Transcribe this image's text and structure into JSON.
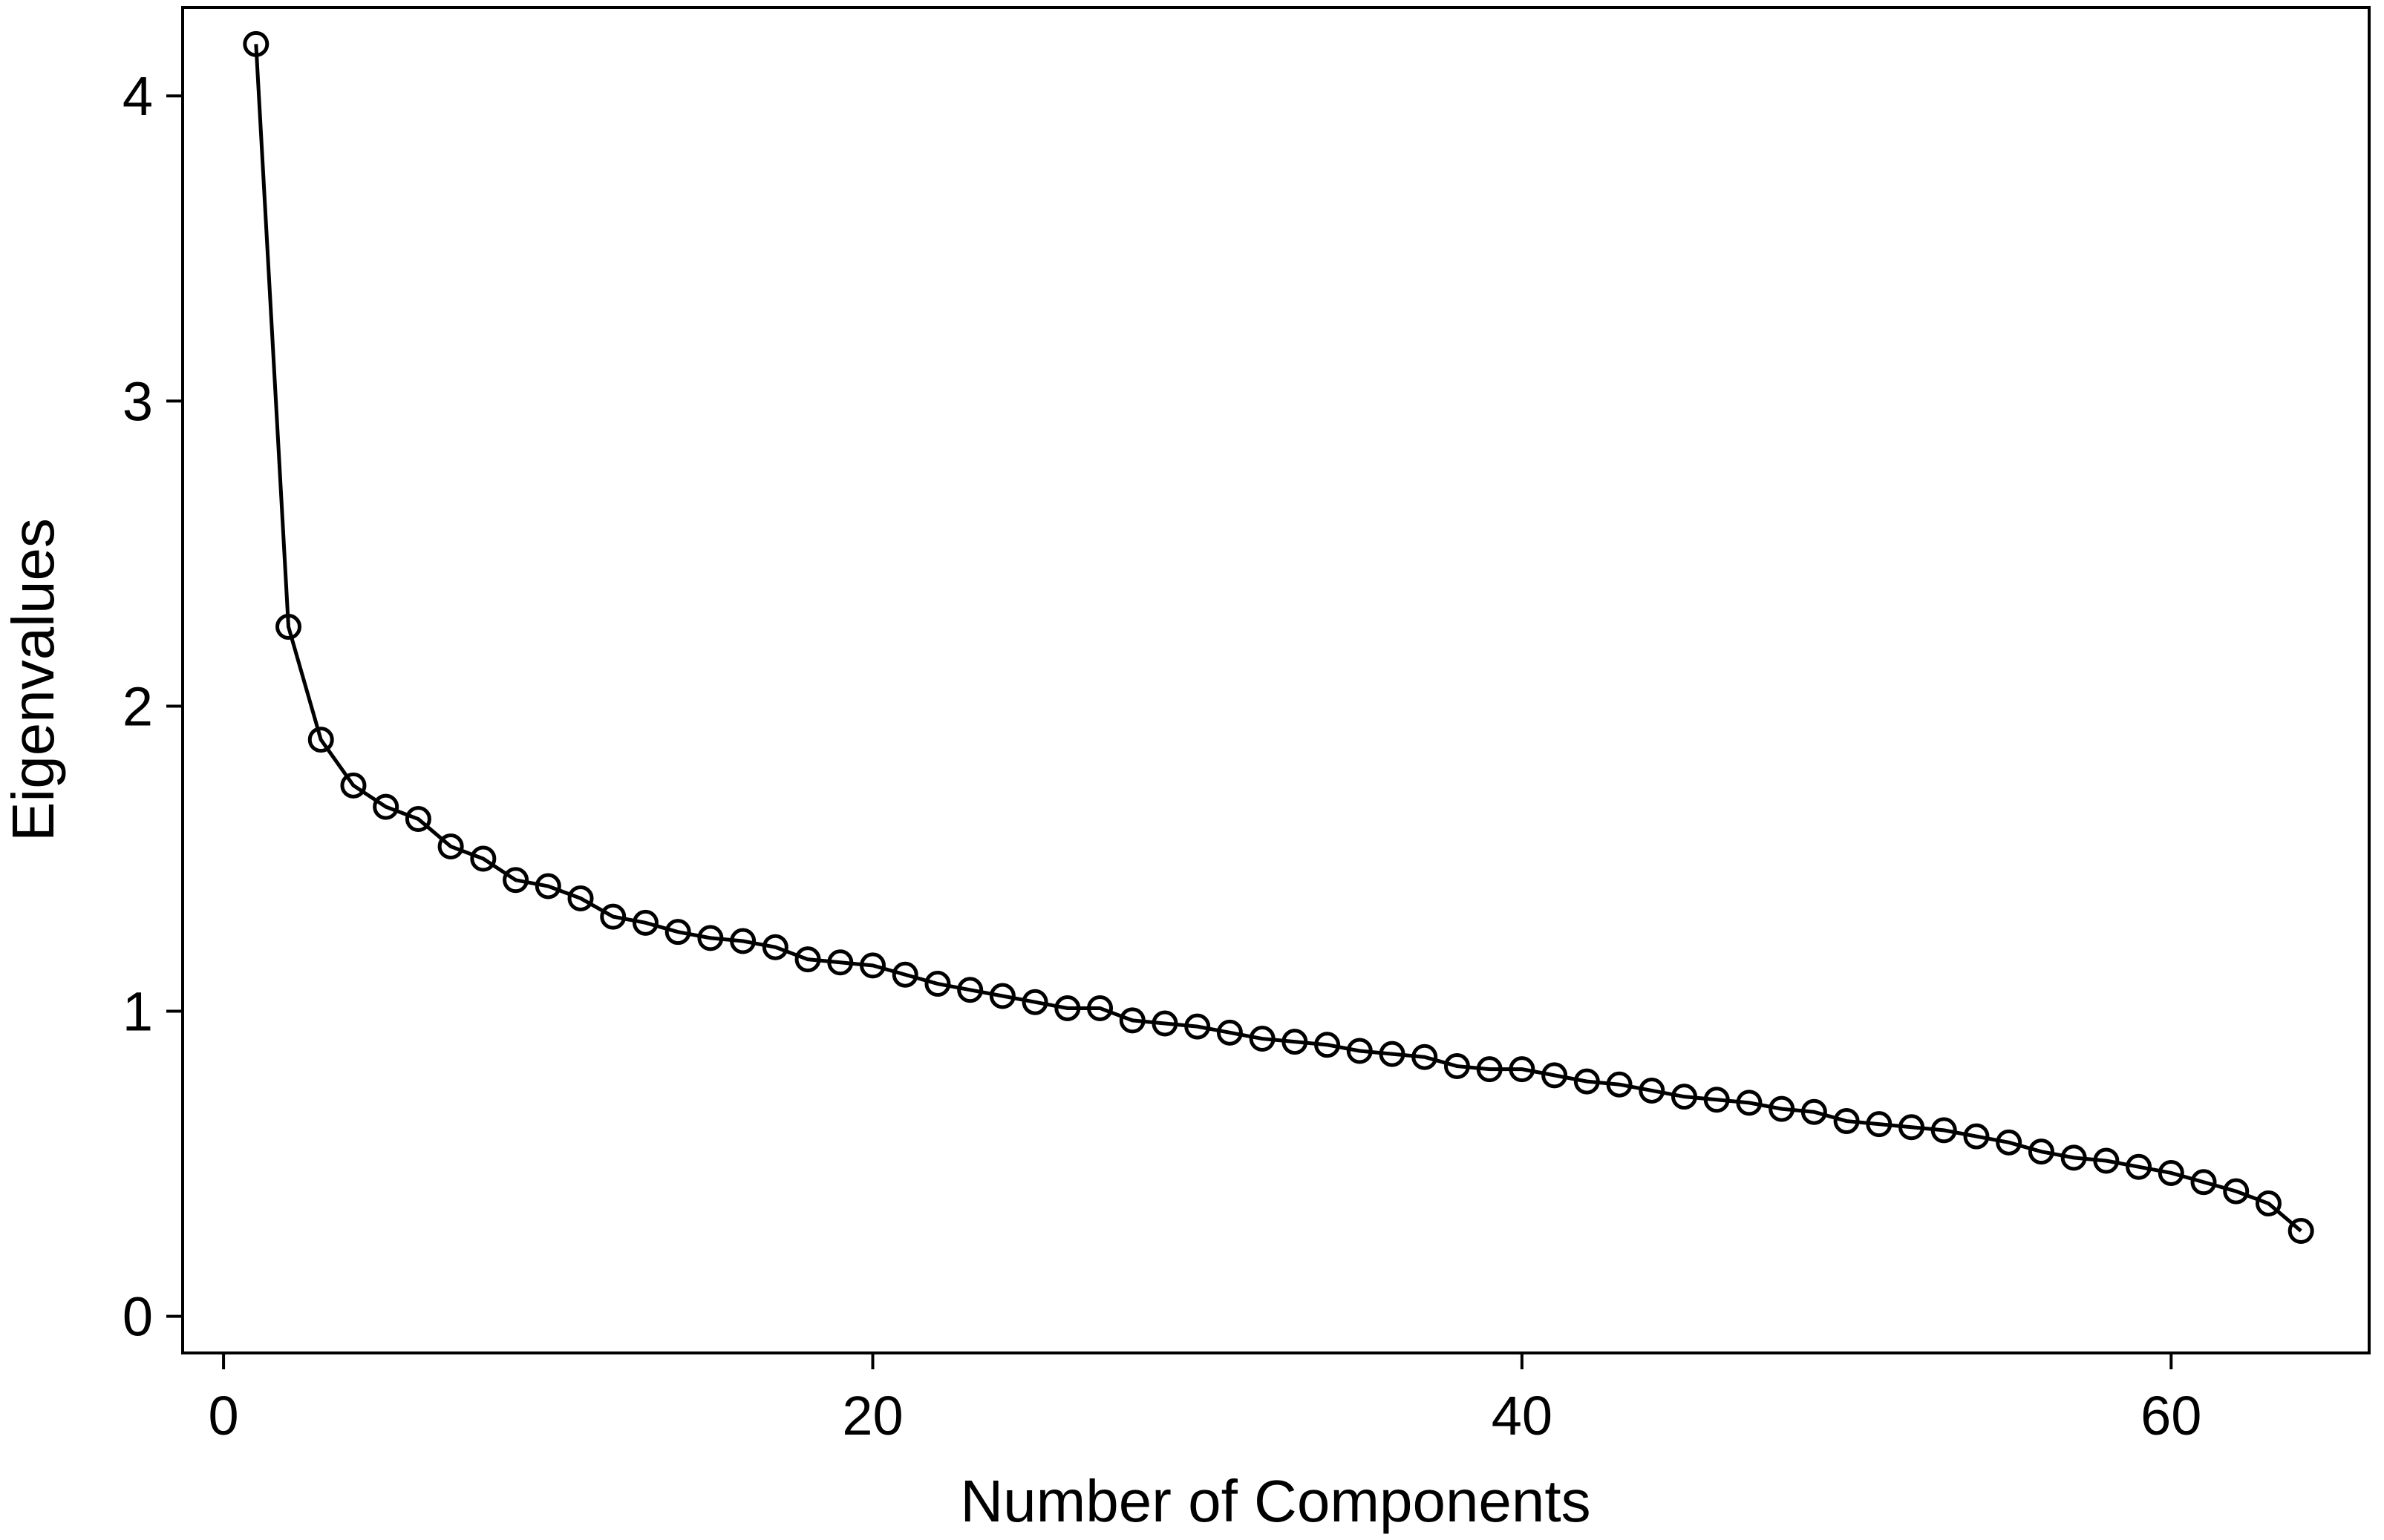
{
  "chart_data": {
    "type": "line",
    "xlabel": "Number of Components",
    "ylabel": "Eigenvalues",
    "x": [
      1,
      2,
      3,
      4,
      5,
      6,
      7,
      8,
      9,
      10,
      11,
      12,
      13,
      14,
      15,
      16,
      17,
      18,
      19,
      20,
      21,
      22,
      23,
      24,
      25,
      26,
      27,
      28,
      29,
      30,
      31,
      32,
      33,
      34,
      35,
      36,
      37,
      38,
      39,
      40,
      41,
      42,
      43,
      44,
      45,
      46,
      47,
      48,
      49,
      50,
      51,
      52,
      53,
      54,
      55,
      56,
      57,
      58,
      59,
      60,
      61,
      62,
      63,
      64
    ],
    "values": [
      4.17,
      2.26,
      1.89,
      1.74,
      1.67,
      1.63,
      1.54,
      1.5,
      1.43,
      1.41,
      1.37,
      1.31,
      1.29,
      1.26,
      1.24,
      1.23,
      1.21,
      1.17,
      1.16,
      1.15,
      1.12,
      1.09,
      1.07,
      1.05,
      1.03,
      1.01,
      1.01,
      0.97,
      0.96,
      0.95,
      0.93,
      0.91,
      0.9,
      0.89,
      0.87,
      0.86,
      0.85,
      0.82,
      0.81,
      0.81,
      0.79,
      0.77,
      0.76,
      0.74,
      0.72,
      0.71,
      0.7,
      0.68,
      0.67,
      0.64,
      0.63,
      0.62,
      0.61,
      0.59,
      0.57,
      0.54,
      0.52,
      0.51,
      0.49,
      0.47,
      0.44,
      0.41,
      0.37,
      0.28
    ],
    "color": "#000000",
    "xlim": [
      -1.26,
      66.1
    ],
    "xticks": [
      0,
      20,
      40,
      60
    ],
    "ylim": [
      -0.12,
      4.29
    ],
    "yticks": [
      0,
      1,
      2,
      3,
      4
    ],
    "grid": false
  }
}
